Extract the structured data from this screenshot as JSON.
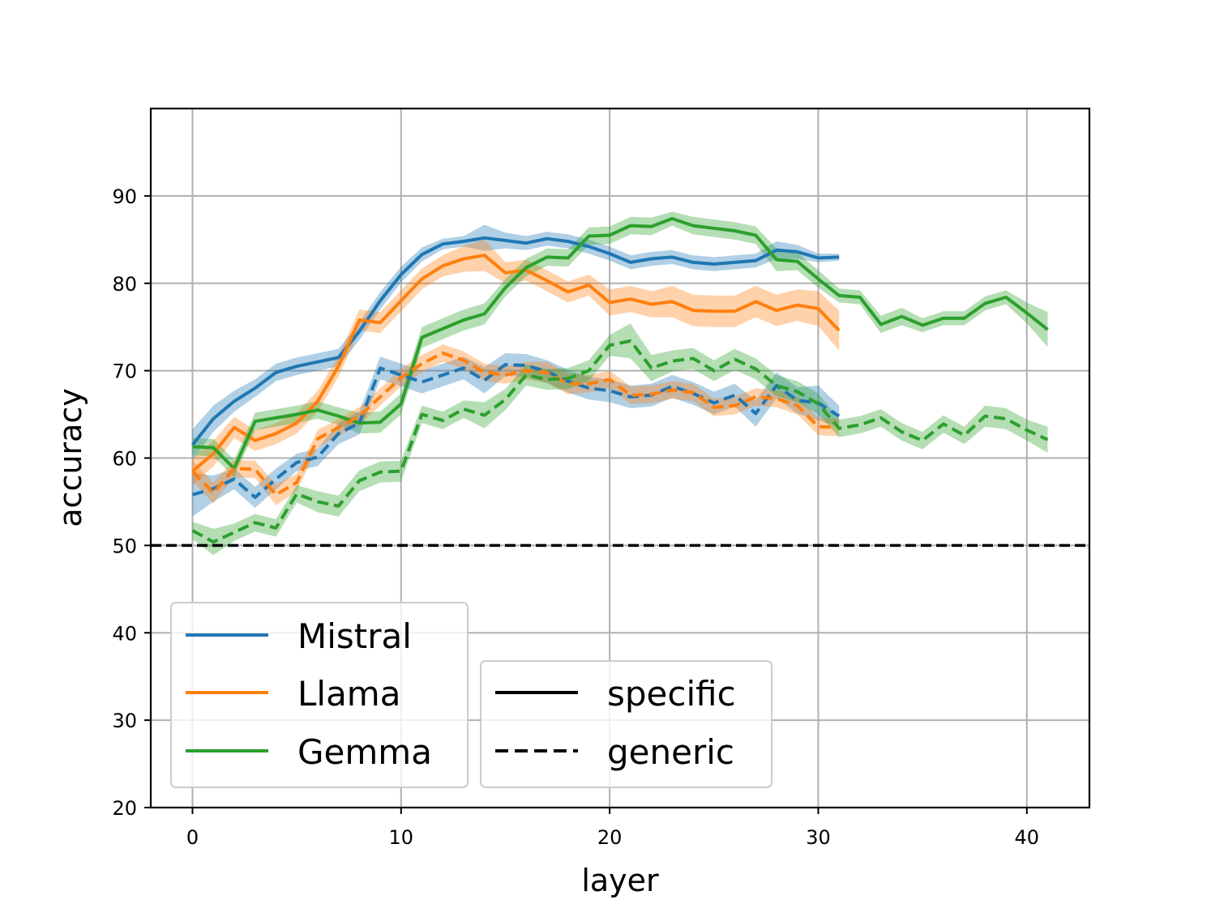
{
  "chart_data": {
    "type": "line",
    "xlabel": "layer",
    "ylabel": "accuracy",
    "xlim": [
      -2,
      43
    ],
    "ylim": [
      20,
      100
    ],
    "xticks": [
      0,
      10,
      20,
      30,
      40
    ],
    "yticks": [
      20,
      30,
      40,
      50,
      60,
      70,
      80,
      90
    ],
    "grid": true,
    "baseline": {
      "value": 50,
      "style": "dashed",
      "color": "#000000"
    },
    "series": [
      {
        "name": "Mistral",
        "variant": "specific",
        "color": "#1f77b4",
        "style": "solid",
        "x": [
          0,
          1,
          2,
          3,
          4,
          5,
          6,
          7,
          8,
          9,
          10,
          11,
          12,
          13,
          14,
          15,
          16,
          17,
          18,
          19,
          20,
          21,
          22,
          23,
          24,
          25,
          26,
          27,
          28,
          29,
          30,
          31
        ],
        "y": [
          61.5,
          64.5,
          66.5,
          68.0,
          69.8,
          70.5,
          71.0,
          71.5,
          74.5,
          78.0,
          81.0,
          83.3,
          84.5,
          84.8,
          85.2,
          84.9,
          84.6,
          85.1,
          84.8,
          84.2,
          83.4,
          82.4,
          82.8,
          83.0,
          82.4,
          82.2,
          82.4,
          82.6,
          83.8,
          83.6,
          82.9,
          83.0
        ],
        "band": [
          1.8,
          1.5,
          1.2,
          1.0,
          1.0,
          1.0,
          1.0,
          1.0,
          1.0,
          1.0,
          0.9,
          0.8,
          0.6,
          0.6,
          1.5,
          0.9,
          0.8,
          0.8,
          0.8,
          0.8,
          0.8,
          0.8,
          0.8,
          0.8,
          0.8,
          0.8,
          0.8,
          0.8,
          1.0,
          0.8,
          0.5,
          0.4
        ]
      },
      {
        "name": "Llama",
        "variant": "specific",
        "color": "#ff7f0e",
        "style": "solid",
        "x": [
          0,
          1,
          2,
          3,
          4,
          5,
          6,
          7,
          8,
          9,
          10,
          11,
          12,
          13,
          14,
          15,
          16,
          17,
          18,
          19,
          20,
          21,
          22,
          23,
          24,
          25,
          26,
          27,
          28,
          29,
          30,
          31
        ],
        "y": [
          58.5,
          60.5,
          63.5,
          62.0,
          62.8,
          64.0,
          66.5,
          70.5,
          75.8,
          75.5,
          78.0,
          80.5,
          82.0,
          82.8,
          83.2,
          81.2,
          81.5,
          80.3,
          79.0,
          79.8,
          77.8,
          78.2,
          77.6,
          77.9,
          76.9,
          76.8,
          76.8,
          77.9,
          76.9,
          77.5,
          77.1,
          74.6
        ],
        "band": [
          1.5,
          1.5,
          1.2,
          1.2,
          1.2,
          1.2,
          1.2,
          1.2,
          1.2,
          1.2,
          1.2,
          1.2,
          1.2,
          1.5,
          1.8,
          1.2,
          1.2,
          1.2,
          1.2,
          1.2,
          1.5,
          1.5,
          1.5,
          1.8,
          1.8,
          1.8,
          1.8,
          1.8,
          1.8,
          1.8,
          2.0,
          2.3
        ]
      },
      {
        "name": "Gemma",
        "variant": "specific",
        "color": "#2ca02c",
        "style": "solid",
        "x": [
          0,
          1,
          2,
          3,
          4,
          5,
          6,
          7,
          8,
          9,
          10,
          11,
          12,
          13,
          14,
          15,
          16,
          17,
          18,
          19,
          20,
          21,
          22,
          23,
          24,
          25,
          26,
          27,
          28,
          29,
          30,
          31,
          32,
          33,
          34,
          35,
          36,
          37,
          38,
          39,
          40,
          41
        ],
        "y": [
          61.3,
          61.2,
          58.8,
          64.2,
          64.6,
          65.0,
          65.5,
          64.8,
          64.0,
          64.1,
          66.2,
          73.8,
          74.8,
          75.8,
          76.5,
          79.5,
          81.8,
          83.0,
          82.9,
          85.4,
          85.5,
          86.6,
          86.5,
          87.4,
          86.6,
          86.3,
          86.0,
          85.5,
          82.7,
          82.5,
          80.5,
          78.6,
          78.4,
          75.3,
          76.2,
          75.2,
          76.0,
          76.0,
          77.7,
          78.4,
          76.6,
          74.7
        ],
        "band": [
          1.0,
          1.0,
          1.0,
          1.0,
          1.0,
          1.0,
          1.0,
          1.0,
          1.2,
          1.2,
          1.2,
          1.2,
          1.2,
          1.2,
          1.2,
          1.0,
          1.0,
          1.0,
          1.0,
          1.0,
          1.0,
          1.0,
          1.0,
          0.8,
          1.0,
          1.0,
          1.0,
          1.0,
          1.3,
          1.0,
          1.0,
          0.8,
          0.8,
          1.0,
          1.0,
          0.8,
          0.8,
          0.8,
          0.8,
          0.8,
          1.2,
          2.0
        ]
      },
      {
        "name": "Mistral",
        "variant": "generic",
        "color": "#1f77b4",
        "style": "dashed",
        "x": [
          0,
          1,
          2,
          3,
          4,
          5,
          6,
          7,
          8,
          9,
          10,
          11,
          12,
          13,
          14,
          15,
          16,
          17,
          18,
          19,
          20,
          21,
          22,
          23,
          24,
          25,
          26,
          27,
          28,
          29,
          30,
          31
        ],
        "y": [
          55.8,
          56.5,
          57.6,
          55.5,
          57.6,
          59.5,
          60.1,
          62.8,
          64.0,
          70.3,
          69.5,
          68.7,
          69.5,
          70.3,
          68.9,
          70.7,
          70.6,
          69.9,
          68.8,
          68.0,
          67.7,
          67.0,
          67.2,
          68.2,
          67.4,
          66.3,
          67.2,
          65.1,
          68.3,
          66.6,
          66.3,
          64.8
        ],
        "band": [
          2.5,
          1.5,
          1.2,
          1.2,
          1.2,
          1.0,
          1.0,
          1.2,
          1.3,
          1.3,
          1.3,
          1.3,
          1.3,
          1.3,
          1.5,
          1.3,
          1.3,
          1.3,
          1.3,
          1.3,
          1.3,
          1.3,
          1.3,
          1.3,
          1.3,
          1.3,
          1.3,
          1.5,
          1.5,
          1.5,
          2.0,
          1.2
        ]
      },
      {
        "name": "Llama",
        "variant": "generic",
        "color": "#ff7f0e",
        "style": "dashed",
        "x": [
          0,
          1,
          2,
          3,
          4,
          5,
          6,
          7,
          8,
          9,
          10,
          11,
          12,
          13,
          14,
          15,
          16,
          17,
          18,
          19,
          20,
          21,
          22,
          23,
          24,
          25,
          26,
          27,
          28,
          29,
          30,
          31
        ],
        "y": [
          58.5,
          56.0,
          58.8,
          58.7,
          55.8,
          57.2,
          62.2,
          63.5,
          64.8,
          67.0,
          69.2,
          70.8,
          72.0,
          71.2,
          69.8,
          69.5,
          70.0,
          69.8,
          68.5,
          68.5,
          69.0,
          67.2,
          67.3,
          67.8,
          67.5,
          65.8,
          66.0,
          67.0,
          66.8,
          66.0,
          63.6,
          63.5
        ],
        "band": [
          1.2,
          1.2,
          1.0,
          1.0,
          1.2,
          1.0,
          1.0,
          1.0,
          1.0,
          1.0,
          1.0,
          1.0,
          1.0,
          1.0,
          1.0,
          1.0,
          1.0,
          1.2,
          1.2,
          1.0,
          1.0,
          1.0,
          1.0,
          1.0,
          1.0,
          1.0,
          1.0,
          1.0,
          1.0,
          1.0,
          1.0,
          1.0
        ]
      },
      {
        "name": "Gemma",
        "variant": "generic",
        "color": "#2ca02c",
        "style": "dashed",
        "x": [
          0,
          1,
          2,
          3,
          4,
          5,
          6,
          7,
          8,
          9,
          10,
          11,
          12,
          13,
          14,
          15,
          16,
          17,
          18,
          19,
          20,
          21,
          22,
          23,
          24,
          25,
          26,
          27,
          28,
          29,
          30,
          31,
          32,
          33,
          34,
          35,
          36,
          37,
          38,
          39,
          40,
          41
        ],
        "y": [
          51.7,
          50.4,
          51.5,
          52.6,
          52.0,
          55.9,
          55.0,
          54.5,
          57.4,
          58.4,
          58.5,
          65.0,
          64.3,
          65.6,
          64.9,
          66.7,
          69.5,
          69.0,
          69.1,
          70.0,
          72.9,
          73.4,
          70.3,
          71.1,
          71.4,
          70.0,
          71.3,
          70.2,
          68.3,
          67.6,
          66.2,
          63.4,
          63.8,
          64.6,
          63.0,
          62.0,
          63.9,
          62.6,
          64.8,
          64.5,
          63.2,
          62.1
        ],
        "band": [
          1.0,
          1.5,
          1.0,
          1.0,
          1.0,
          1.0,
          1.2,
          1.2,
          1.2,
          1.2,
          1.2,
          1.0,
          1.0,
          1.0,
          1.5,
          1.2,
          1.2,
          1.2,
          1.2,
          1.2,
          1.2,
          2.0,
          1.5,
          1.2,
          1.2,
          1.2,
          1.2,
          1.2,
          1.2,
          1.2,
          1.2,
          1.0,
          1.0,
          1.0,
          1.0,
          1.0,
          1.0,
          1.0,
          1.2,
          1.2,
          1.2,
          1.5
        ]
      }
    ],
    "legend_models": {
      "placement": "lower-left",
      "entries": [
        {
          "label": "Mistral",
          "color": "#1f77b4"
        },
        {
          "label": "Llama",
          "color": "#ff7f0e"
        },
        {
          "label": "Gemma",
          "color": "#2ca02c"
        }
      ]
    },
    "legend_styles": {
      "placement": "lower-center",
      "entries": [
        {
          "label": "specific",
          "style": "solid",
          "color": "#000000"
        },
        {
          "label": "generic",
          "style": "dashed",
          "color": "#000000"
        }
      ]
    }
  }
}
